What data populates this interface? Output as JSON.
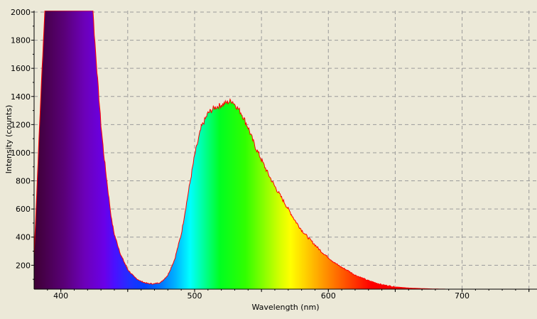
{
  "chart_data": {
    "type": "area",
    "xlabel": "Wavelength (nm)",
    "ylabel": "Intensity (counts)",
    "xlim": [
      380,
      756
    ],
    "ylim": [
      30,
      2010
    ],
    "x_ticks": [
      400,
      500,
      600,
      700
    ],
    "y_ticks": [
      200,
      400,
      600,
      800,
      1000,
      1200,
      1400,
      1600,
      1800,
      2000
    ],
    "grid": true,
    "fill": "visible-spectrum gradient",
    "line_color": "#FF0000",
    "background_color": "#ECE9D8",
    "series": [
      {
        "x": [
          380,
          385,
          388,
          390,
          395,
          400,
          405,
          410,
          415,
          420,
          424,
          425,
          428,
          430,
          432,
          435,
          438,
          440,
          445,
          450,
          455,
          460,
          465,
          470,
          475,
          480,
          485,
          490,
          495,
          500,
          505,
          510,
          515,
          520,
          525,
          528,
          530,
          532,
          535,
          540,
          545,
          550,
          555,
          560,
          565,
          570,
          575,
          580,
          585,
          590,
          595,
          600,
          605,
          610,
          615,
          620,
          625,
          630,
          640,
          650,
          660,
          670,
          680,
          690,
          700,
          710,
          720,
          730,
          740,
          756
        ],
        "y": [
          270,
          1400,
          2010,
          2010,
          2010,
          2010,
          2010,
          2010,
          2010,
          2010,
          2010,
          1850,
          1450,
          1200,
          1000,
          750,
          520,
          420,
          270,
          170,
          115,
          85,
          70,
          68,
          80,
          130,
          240,
          420,
          700,
          980,
          1180,
          1280,
          1320,
          1340,
          1360,
          1370,
          1345,
          1320,
          1280,
          1180,
          1050,
          950,
          850,
          760,
          680,
          600,
          520,
          450,
          395,
          345,
          295,
          255,
          215,
          185,
          160,
          130,
          110,
          90,
          62,
          46,
          38,
          34,
          31,
          30,
          30,
          30,
          30,
          30,
          30,
          30
        ]
      }
    ]
  }
}
